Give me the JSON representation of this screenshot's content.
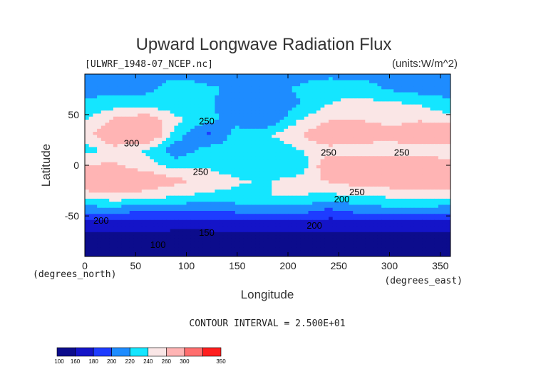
{
  "chart_data": {
    "type": "heatmap",
    "title": "Upward Longwave Radiation Flux",
    "file_label": "[ULWRF_1948-07_NCEP.nc]",
    "units_label": "(units:W/m^2)",
    "xlabel": "Longitude",
    "ylabel": "Latitude",
    "x_unit_label": "(degrees_east)",
    "y_unit_label": "(degrees_north)",
    "xlim": [
      0,
      360
    ],
    "ylim": [
      -90,
      90
    ],
    "x_ticks": [
      0,
      50,
      100,
      150,
      200,
      250,
      300,
      350
    ],
    "y_ticks": [
      -50,
      0,
      50
    ],
    "contour_interval_text": "CONTOUR INTERVAL = 2.500E+01",
    "contour_labels": [
      {
        "value": "250",
        "lon": 120,
        "lat": 44
      },
      {
        "value": "300",
        "lon": 46,
        "lat": 22
      },
      {
        "value": "250",
        "lon": 240,
        "lat": 13
      },
      {
        "value": "250",
        "lon": 312,
        "lat": 13
      },
      {
        "value": "250",
        "lon": 114,
        "lat": -6
      },
      {
        "value": "250",
        "lon": 268,
        "lat": -26
      },
      {
        "value": "200",
        "lon": 253,
        "lat": -33
      },
      {
        "value": "200",
        "lon": 16,
        "lat": -54
      },
      {
        "value": "200",
        "lon": 226,
        "lat": -59
      },
      {
        "value": "150",
        "lon": 120,
        "lat": -66
      },
      {
        "value": "100",
        "lon": 72,
        "lat": -78
      }
    ],
    "color_levels": [
      {
        "label": "100",
        "color": "#0c0c8c"
      },
      {
        "label": "160",
        "color": "#1414c8"
      },
      {
        "label": "180",
        "color": "#1e3cff"
      },
      {
        "label": "200",
        "color": "#1e8cff"
      },
      {
        "label": "220",
        "color": "#14e6ff"
      },
      {
        "label": "240",
        "color": "#fae6e6"
      },
      {
        "label": "260",
        "color": "#ffb4b4"
      },
      {
        "label": "300",
        "color": "#ff6e6e"
      },
      {
        "label": "350",
        "color": "#ff1e1e"
      }
    ],
    "field": {
      "lons": [
        0,
        30,
        60,
        90,
        120,
        150,
        180,
        210,
        240,
        270,
        300,
        330,
        360
      ],
      "lats": [
        90,
        75,
        60,
        45,
        30,
        15,
        0,
        -15,
        -30,
        -45,
        -60,
        -75,
        -90
      ],
      "values": [
        [
          215,
          215,
          215,
          215,
          215,
          215,
          215,
          215,
          215,
          215,
          215,
          215,
          215
        ],
        [
          215,
          212,
          215,
          230,
          222,
          218,
          215,
          222,
          232,
          228,
          218,
          212,
          215
        ],
        [
          222,
          232,
          232,
          228,
          222,
          212,
          205,
          218,
          240,
          250,
          245,
          238,
          222
        ],
        [
          238,
          265,
          275,
          245,
          225,
          212,
          200,
          238,
          258,
          260,
          250,
          258,
          250
        ],
        [
          250,
          285,
          295,
          230,
          195,
          228,
          238,
          258,
          282,
          285,
          272,
          278,
          290
        ],
        [
          230,
          250,
          238,
          205,
          228,
          230,
          222,
          238,
          252,
          238,
          245,
          252,
          245
        ],
        [
          262,
          262,
          248,
          232,
          238,
          226,
          222,
          222,
          280,
          285,
          280,
          275,
          270
        ],
        [
          282,
          286,
          280,
          266,
          252,
          242,
          238,
          248,
          262,
          272,
          276,
          282,
          282
        ],
        [
          250,
          256,
          250,
          242,
          236,
          236,
          240,
          240,
          236,
          240,
          244,
          248,
          250
        ],
        [
          206,
          206,
          202,
          200,
          200,
          204,
          210,
          210,
          194,
          206,
          212,
          210,
          206
        ],
        [
          165,
          165,
          165,
          165,
          165,
          165,
          165,
          165,
          165,
          165,
          165,
          165,
          165
        ],
        [
          150,
          150,
          150,
          148,
          148,
          150,
          150,
          150,
          150,
          150,
          150,
          150,
          150
        ],
        [
          140,
          140,
          140,
          140,
          140,
          140,
          140,
          140,
          140,
          140,
          140,
          140,
          140
        ]
      ]
    }
  }
}
